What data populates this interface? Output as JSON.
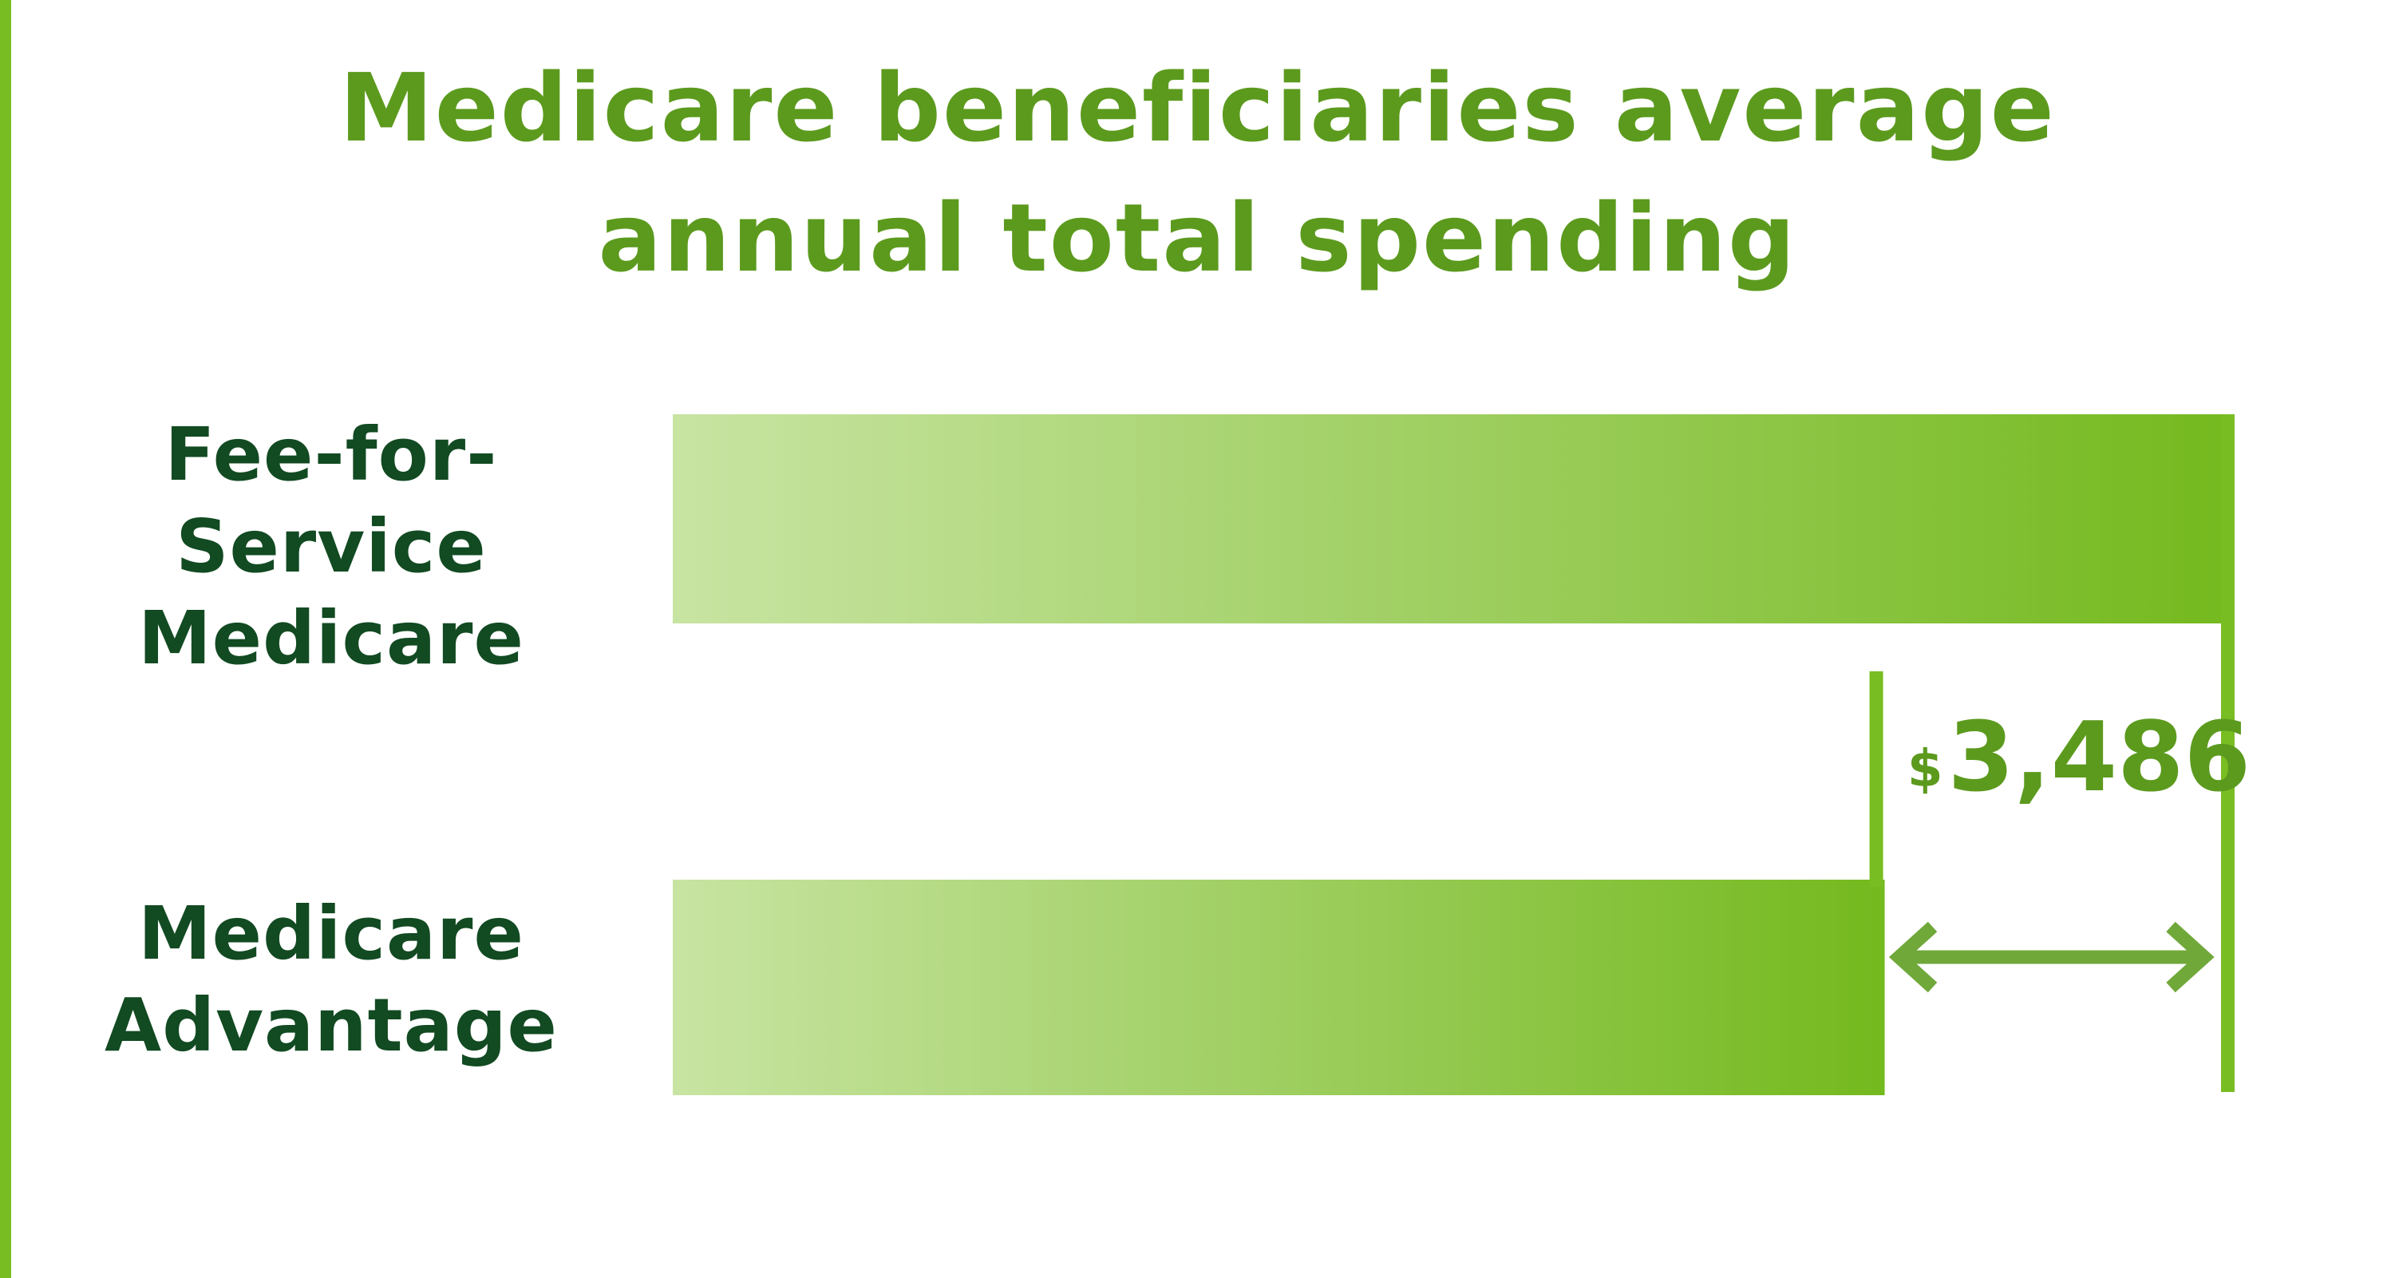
{
  "colors": {
    "accent": "#78bd22",
    "title": "#5c9a1e",
    "label": "#124a22",
    "bar_light": "#c6e4a2",
    "arrow": "#70a83a"
  },
  "chart_data": {
    "type": "bar",
    "orientation": "horizontal",
    "title_lines": [
      "Medicare beneficiaries average",
      "annual total spending"
    ],
    "categories": [
      [
        "Fee-for-Service",
        "Medicare"
      ],
      [
        "Medicare",
        "Advantage"
      ]
    ],
    "values": [
      15560,
      12074
    ],
    "values_note": "estimated from bar lengths and labeled difference",
    "xlim": [
      0,
      15560
    ],
    "grid": false,
    "annotation": {
      "currency": "$",
      "difference": "3,486",
      "difference_value": 3486
    }
  }
}
